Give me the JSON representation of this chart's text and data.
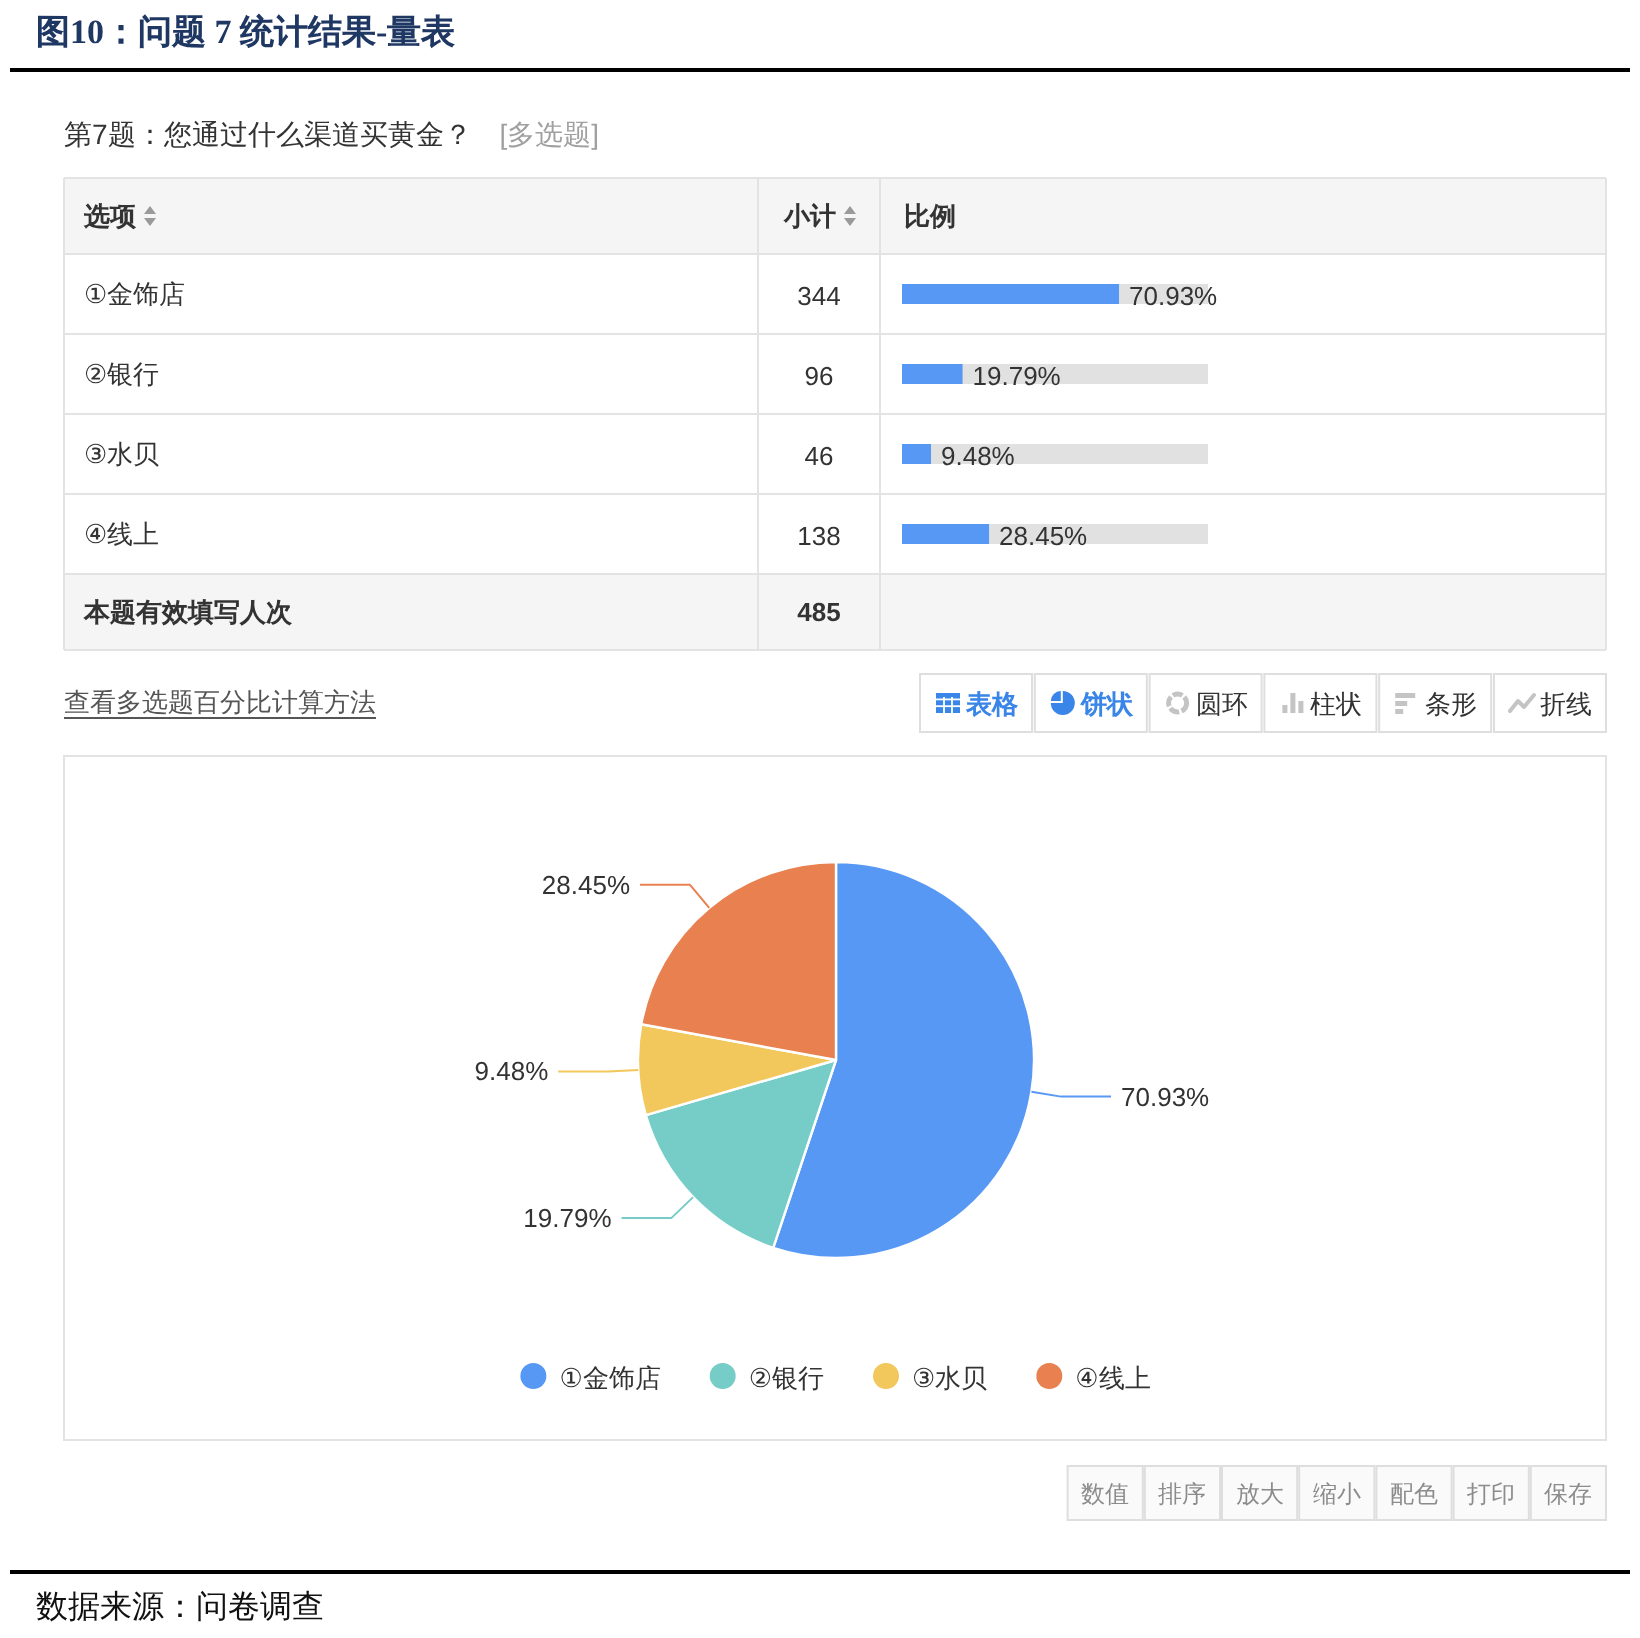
{
  "chart_data": [
    {
      "type": "bar",
      "orientation": "horizontal",
      "categories": [
        "①金饰店",
        "②银行",
        "③水贝",
        "④线上"
      ],
      "values": [
        70.93,
        19.79,
        9.48,
        28.45
      ],
      "value_labels": [
        "70.93%",
        "19.79%",
        "9.48%",
        "28.45%"
      ],
      "color": "#5898f5",
      "xlim": [
        0,
        100
      ],
      "tick_labels": "y",
      "bands": [
        {
          "axis": "x",
          "from": 0,
          "to": 100,
          "color": "#e1e1e1"
        }
      ],
      "annotations": [
        "图10：问题 7 统计结果-量表",
        "第7题：您通过什么渠道买黄金？",
        "[多选题]",
        "选项",
        "小计",
        "比例",
        "344",
        "96",
        "46",
        "138",
        "本题有效填写人次",
        "485",
        "查看多选题百分比计算方法",
        "表格",
        "饼状",
        "圆环",
        "柱状",
        "条形",
        "折线"
      ]
    },
    {
      "type": "pie",
      "categories": [
        "①金饰店",
        "②银行",
        "③水贝",
        "④线上"
      ],
      "values": [
        70.93,
        19.79,
        9.48,
        28.45
      ],
      "colors": [
        "#5898f5",
        "#76cdc7",
        "#f2c75b",
        "#e8814f"
      ],
      "value_labels": [
        "70.93%",
        "19.79%",
        "9.48%",
        "28.45%"
      ],
      "legend": "bottom",
      "annotations": [
        "数值",
        "排序",
        "放大",
        "缩小",
        "配色",
        "打印",
        "保存",
        "数据来源：问卷调查"
      ]
    }
  ]
}
